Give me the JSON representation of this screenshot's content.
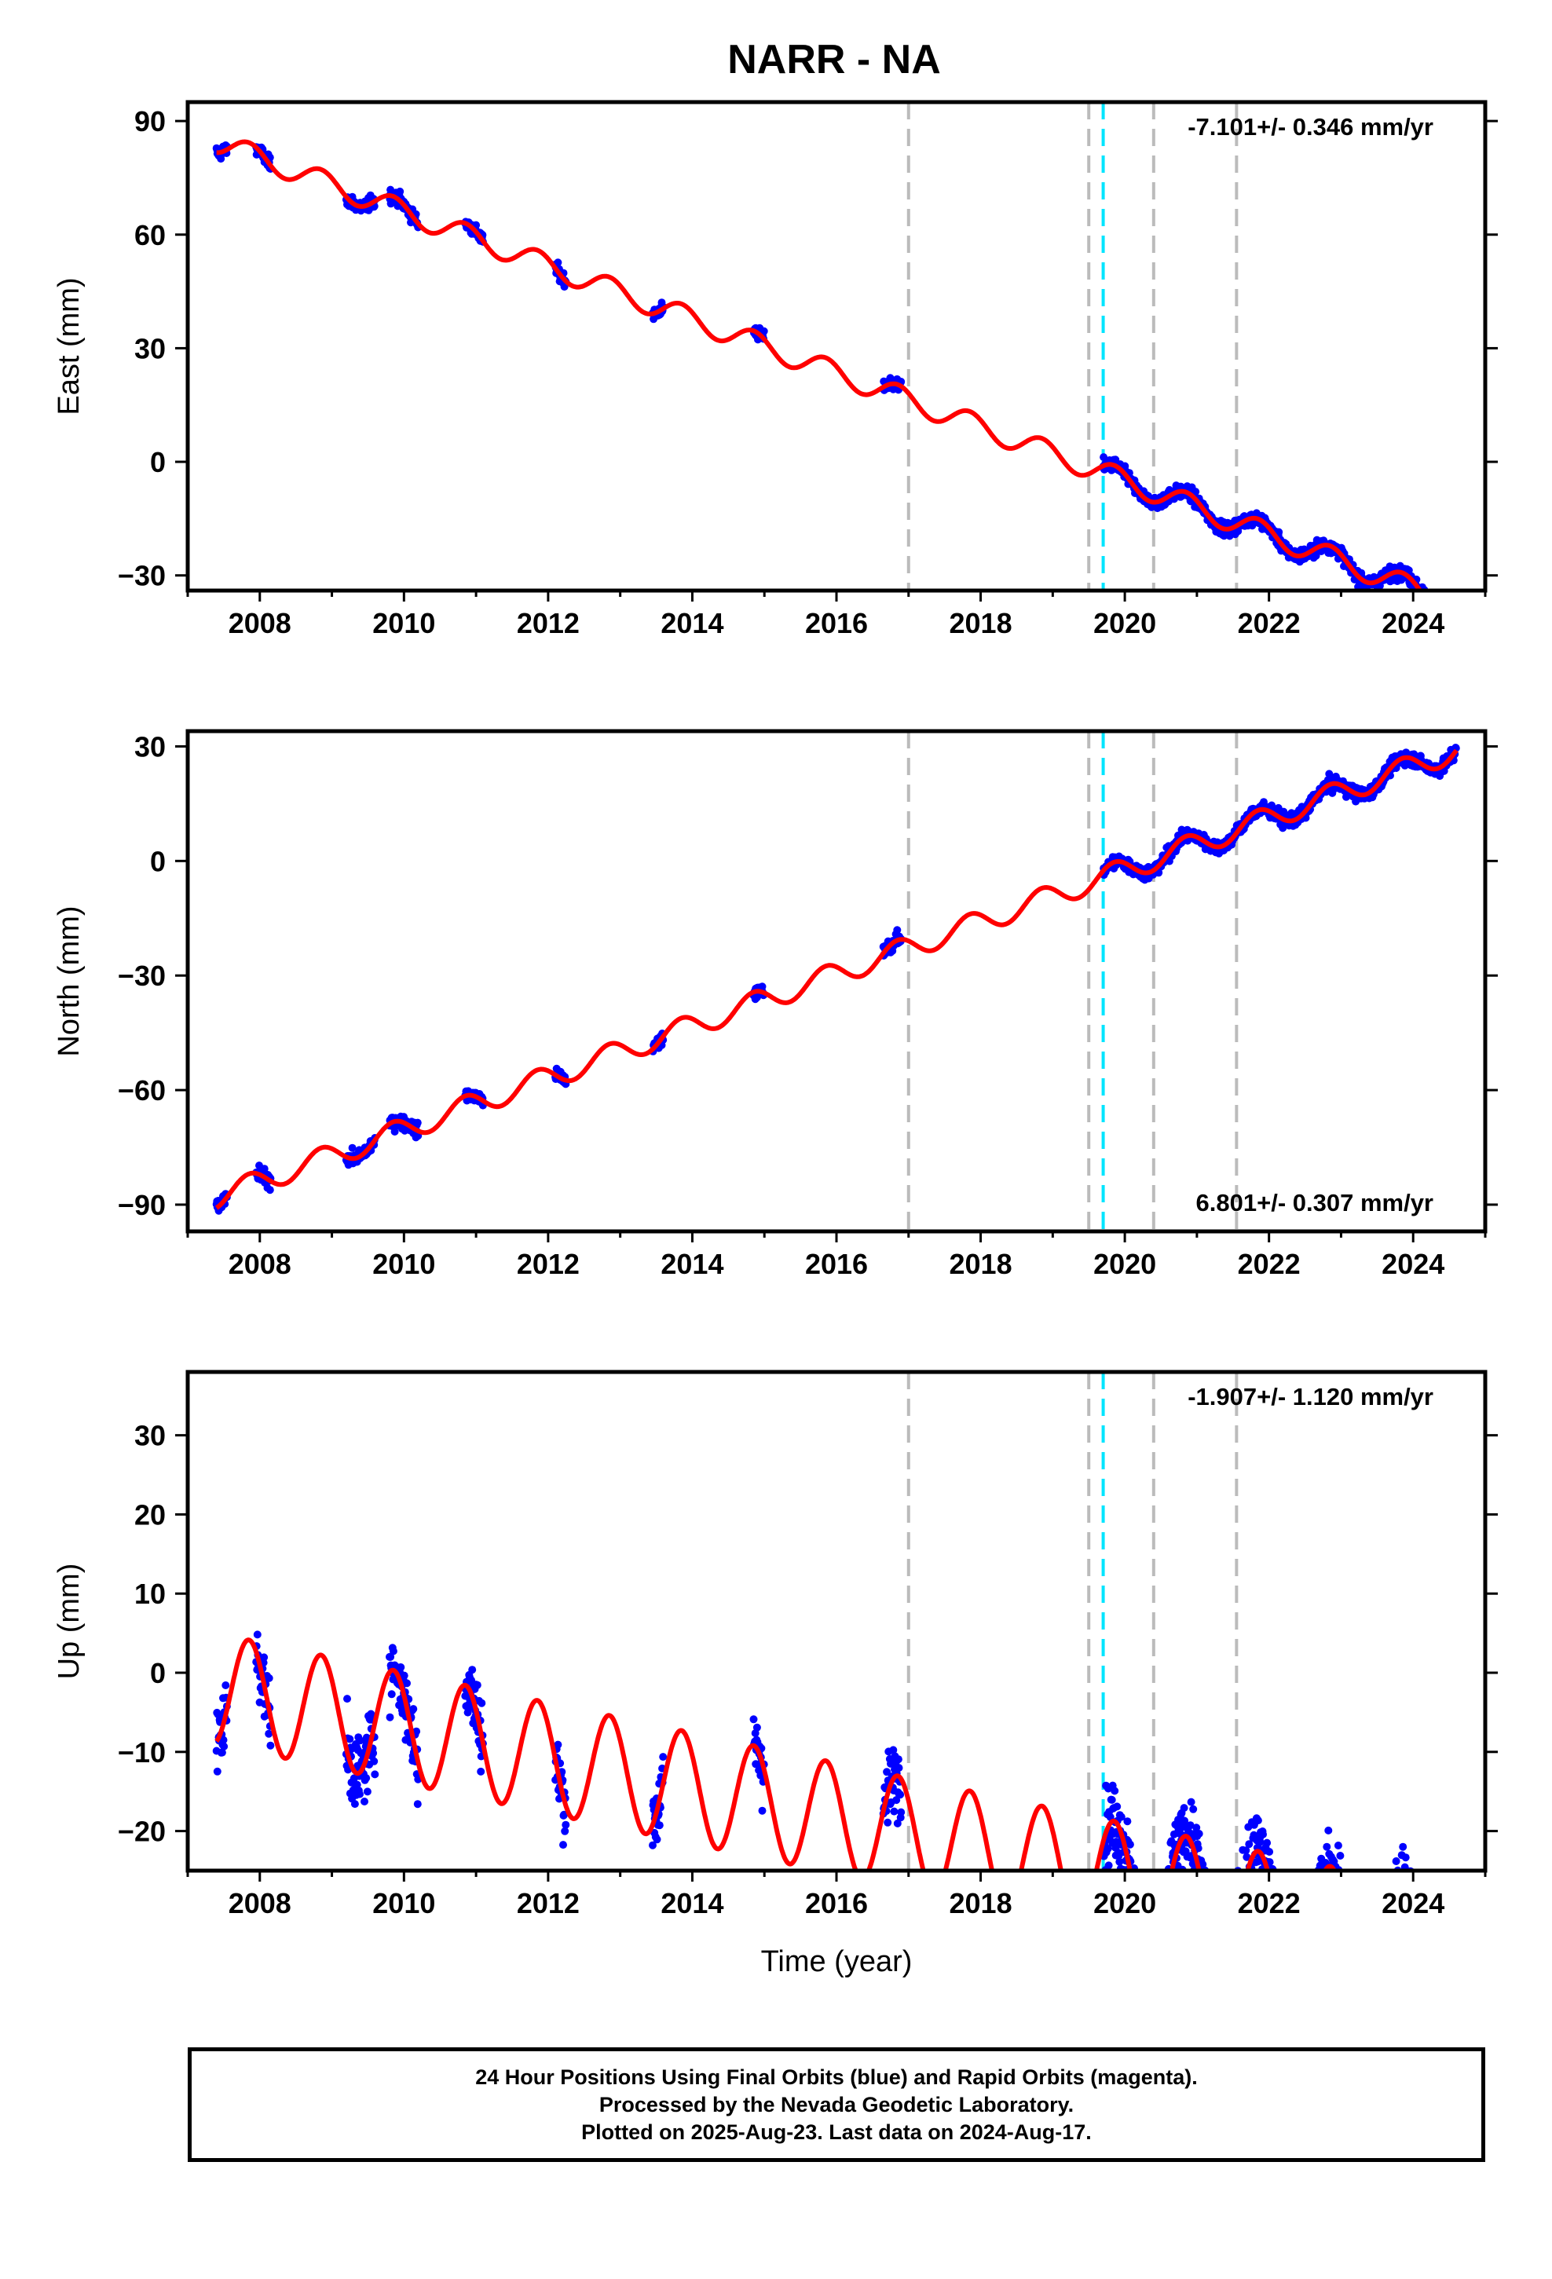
{
  "title": "NARR - NA",
  "colors": {
    "data_points": "#0000ff",
    "model_line": "#ff0000",
    "event_line_gray": "#bbbbbb",
    "event_line_cyan": "#00e5ff",
    "frame": "#000000"
  },
  "caption": {
    "line1": "24 Hour Positions Using Final Orbits (blue) and Rapid Orbits (magenta).",
    "line2": "Processed by the Nevada Geodetic Laboratory.",
    "line3": "Plotted on 2025-Aug-23. Last data on 2024-Aug-17."
  },
  "chart_data": [
    {
      "type": "scatter",
      "name": "east",
      "ylabel": "East (mm)",
      "xlabel": "",
      "xlim": [
        2007.0,
        2025.0
      ],
      "ylim": [
        -34,
        95
      ],
      "x_ticks": [
        2008,
        2010,
        2012,
        2014,
        2016,
        2018,
        2020,
        2022,
        2024
      ],
      "y_ticks": [
        -30,
        0,
        30,
        60,
        90
      ],
      "y_tick_labels": [
        "−30",
        "0",
        "30",
        "60",
        "90"
      ],
      "rate_label": "-7.101+/- 0.346 mm/yr",
      "rate_position": "top-right",
      "rate_mm_yr": -7.101,
      "model_offset_mm": 84.5,
      "seasonal_amplitude_mm": 3.0,
      "data_scatter_mm": 1.5,
      "gray_event_lines": [
        2017.0,
        2019.5,
        2020.4,
        2021.55
      ],
      "cyan_event_line": 2019.7,
      "data_segments": [
        [
          2007.4,
          2007.55
        ],
        [
          2007.95,
          2008.15
        ],
        [
          2009.2,
          2009.6
        ],
        [
          2009.8,
          2010.2
        ],
        [
          2010.85,
          2011.1
        ],
        [
          2012.1,
          2012.25
        ],
        [
          2013.45,
          2013.6
        ],
        [
          2014.85,
          2015.0
        ],
        [
          2016.65,
          2016.9
        ],
        [
          2019.7,
          2024.6
        ]
      ]
    },
    {
      "type": "scatter",
      "name": "north",
      "ylabel": "North (mm)",
      "xlabel": "",
      "xlim": [
        2007.0,
        2025.0
      ],
      "ylim": [
        -97,
        34
      ],
      "x_ticks": [
        2008,
        2010,
        2012,
        2014,
        2016,
        2018,
        2020,
        2022,
        2024
      ],
      "y_ticks": [
        -90,
        -60,
        -30,
        0,
        30
      ],
      "y_tick_labels": [
        "−90",
        "−60",
        "−30",
        "0",
        "30"
      ],
      "rate_label": "6.801+/- 0.307 mm/yr",
      "rate_position": "bottom-right",
      "rate_mm_yr": 6.801,
      "model_offset_mm": -88,
      "seasonal_amplitude_mm": 3.0,
      "data_scatter_mm": 1.5,
      "gray_event_lines": [
        2017.0,
        2019.5,
        2020.4,
        2021.55
      ],
      "cyan_event_line": 2019.7,
      "data_segments": [
        [
          2007.4,
          2007.55
        ],
        [
          2007.95,
          2008.15
        ],
        [
          2009.2,
          2009.6
        ],
        [
          2009.8,
          2010.2
        ],
        [
          2010.85,
          2011.1
        ],
        [
          2012.1,
          2012.25
        ],
        [
          2013.45,
          2013.6
        ],
        [
          2014.85,
          2015.0
        ],
        [
          2016.65,
          2016.9
        ],
        [
          2019.7,
          2024.6
        ]
      ]
    },
    {
      "type": "scatter",
      "name": "up",
      "ylabel": "Up (mm)",
      "xlabel": "Time (year)",
      "xlim": [
        2007.0,
        2025.0
      ],
      "ylim": [
        -25,
        38
      ],
      "x_ticks": [
        2008,
        2010,
        2012,
        2014,
        2016,
        2018,
        2020,
        2022,
        2024
      ],
      "y_ticks": [
        -20,
        -10,
        0,
        10,
        20,
        30
      ],
      "y_tick_labels": [
        "−20",
        "−10",
        "0",
        "10",
        "20",
        "30"
      ],
      "rate_label": "-1.907+/- 1.120 mm/yr",
      "rate_position": "top-right",
      "rate_mm_yr": -1.907,
      "model_offset_mm": -2,
      "seasonal_amplitude_mm": 7.0,
      "data_scatter_mm": 4.0,
      "gray_event_lines": [
        2017.0,
        2019.5,
        2020.4,
        2021.55
      ],
      "cyan_event_line": 2019.7,
      "data_segments": [
        [
          2007.4,
          2007.55
        ],
        [
          2007.95,
          2008.15
        ],
        [
          2009.2,
          2009.6
        ],
        [
          2009.8,
          2010.2
        ],
        [
          2010.85,
          2011.1
        ],
        [
          2012.1,
          2012.25
        ],
        [
          2013.45,
          2013.6
        ],
        [
          2014.85,
          2015.0
        ],
        [
          2016.65,
          2016.9
        ],
        [
          2019.7,
          2024.6
        ]
      ]
    }
  ]
}
